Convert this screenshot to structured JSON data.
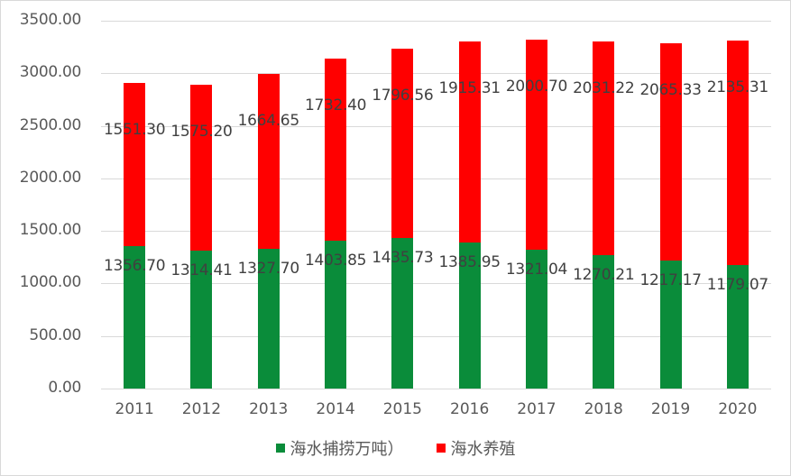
{
  "chart_data": {
    "type": "bar",
    "stacked": true,
    "title": "",
    "xlabel": "",
    "ylabel": "",
    "categories": [
      "2011",
      "2012",
      "2013",
      "2014",
      "2015",
      "2016",
      "2017",
      "2018",
      "2019",
      "2020"
    ],
    "series": [
      {
        "name": "海水捕捞万吨）",
        "color": "#0a8c3a",
        "values": [
          1356.7,
          1314.41,
          1327.7,
          1403.85,
          1435.73,
          1385.95,
          1321.04,
          1270.21,
          1217.17,
          1179.07
        ],
        "labels": [
          "1356.70",
          "1314.41",
          "1327.70",
          "1403.85",
          "1435.73",
          "1385.95",
          "1321.04",
          "1270.21",
          "1217.17",
          "1179.07"
        ]
      },
      {
        "name": "海水养殖",
        "color": "#ff0000",
        "values": [
          1551.3,
          1575.2,
          1664.65,
          1732.4,
          1796.56,
          1915.31,
          2000.7,
          2031.22,
          2065.33,
          2135.31
        ],
        "labels": [
          "1551.30",
          "1575.20",
          "1664.65",
          "1732.40",
          "1796.56",
          "1915.31",
          "2000.70",
          "2031.22",
          "2065.33",
          "2135.31"
        ]
      }
    ],
    "yticks": [
      "0.00",
      "500.00",
      "1000.00",
      "1500.00",
      "2000.00",
      "2500.00",
      "3000.00",
      "3500.00"
    ],
    "ylim": [
      0,
      3500
    ],
    "grid": true,
    "legend_position": "bottom"
  },
  "legend": {
    "items": [
      {
        "label": "海水捕捞万吨）",
        "color": "#0a8c3a"
      },
      {
        "label": "海水养殖",
        "color": "#ff0000"
      }
    ]
  }
}
